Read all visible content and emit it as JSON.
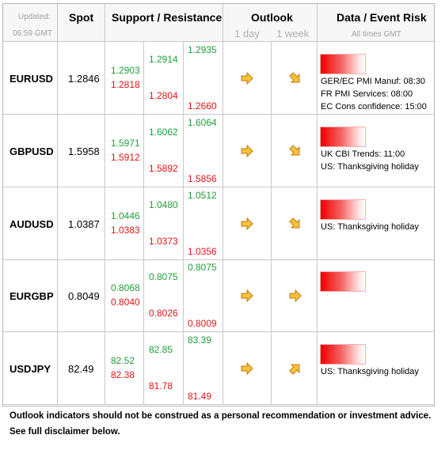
{
  "header": {
    "updated_label": "Updated:",
    "updated_time": "06:59 GMT",
    "spot": "Spot",
    "support_resistance": "Support / Resistance",
    "outlook": "Outlook",
    "outlook_1day": "1 day",
    "outlook_1week": "1 week",
    "data_event_risk": "Data / Event Risk",
    "all_times": "All times GMT"
  },
  "rows": [
    {
      "pair": "EURUSD",
      "spot": "1.2846",
      "s1_green": "1.2903",
      "s1_red": "1.2818",
      "s2_green": "1.2914",
      "s2_red": "1.2804",
      "s3_green": "1.2935",
      "s3_red": "1.2660",
      "outlook_1day": "right",
      "outlook_1week": "down-right",
      "events": [
        "GER/EC PMI Manuf: 08:30",
        "FR PMI Services: 08:00",
        "EC Cons confidence: 15:00"
      ]
    },
    {
      "pair": "GBPUSD",
      "spot": "1.5958",
      "s1_green": "1.5971",
      "s1_red": "1.5912",
      "s2_green": "1.6062",
      "s2_red": "1.5892",
      "s3_green": "1.6064",
      "s3_red": "1.5856",
      "outlook_1day": "right",
      "outlook_1week": "down-right",
      "events": [
        "UK CBI Trends: 11:00",
        "US: Thanksgiving holiday"
      ]
    },
    {
      "pair": "AUDUSD",
      "spot": "1.0387",
      "s1_green": "1.0446",
      "s1_red": "1.0383",
      "s2_green": "1.0480",
      "s2_red": "1.0373",
      "s3_green": "1.0512",
      "s3_red": "1.0356",
      "outlook_1day": "right",
      "outlook_1week": "down-right",
      "events": [
        "US: Thanksgiving holiday"
      ]
    },
    {
      "pair": "EURGBP",
      "spot": "0.8049",
      "s1_green": "0.8068",
      "s1_red": "0.8040",
      "s2_green": "0.8075",
      "s2_red": "0.8026",
      "s3_green": "0.8075",
      "s3_red": "0.8009",
      "outlook_1day": "right",
      "outlook_1week": "right",
      "events": []
    },
    {
      "pair": "USDJPY",
      "spot": "82.49",
      "s1_green": "82.52",
      "s1_red": "82.38",
      "s2_green": "82.85",
      "s2_red": "81.78",
      "s3_green": "83.39",
      "s3_red": "81.49",
      "outlook_1day": "right",
      "outlook_1week": "up-right",
      "events": [
        "US: Thanksgiving holiday"
      ]
    }
  ],
  "footer": {
    "line1": "Outlook indicators should not be construed as a personal recommendation or investment advice.",
    "line2": "See full disclaimer below."
  },
  "colors": {
    "support_green": "#1f9f3a",
    "resistance_red": "#e01515",
    "arrow_fill": "#f6c23a",
    "arrow_stroke": "#c07a10"
  }
}
